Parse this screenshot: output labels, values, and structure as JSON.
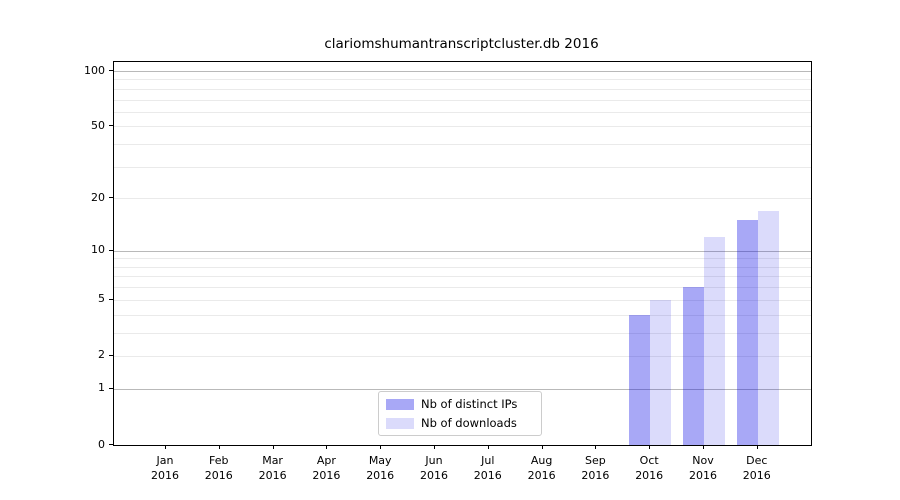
{
  "chart_data": {
    "type": "bar",
    "title": "clariomshumantranscriptcluster.db 2016",
    "categories": [
      "Jan",
      "Feb",
      "Mar",
      "Apr",
      "May",
      "Jun",
      "Jul",
      "Aug",
      "Sep",
      "Oct",
      "Nov",
      "Dec"
    ],
    "category_year": "2016",
    "series": [
      {
        "name": "Nb of distinct IPs",
        "color": "rgba(0,0,230,0.34)",
        "values": [
          null,
          null,
          null,
          null,
          null,
          null,
          null,
          null,
          null,
          4,
          6,
          15
        ]
      },
      {
        "name": "Nb of downloads",
        "color": "rgba(0,0,230,0.14)",
        "values": [
          null,
          null,
          null,
          null,
          null,
          null,
          null,
          null,
          null,
          5,
          12,
          17
        ]
      }
    ],
    "xlabel": "",
    "ylabel": "",
    "y_axis": {
      "scale": "log10(1+x)",
      "ylim": [
        0,
        112
      ],
      "tick_labels": [
        0,
        1,
        2,
        5,
        10,
        20,
        50,
        100
      ],
      "grid_major": [
        1,
        10,
        100
      ],
      "grid_minor": [
        2,
        3,
        4,
        5,
        6,
        7,
        8,
        9,
        20,
        30,
        40,
        50,
        60,
        70,
        80,
        90
      ]
    },
    "grid": true,
    "legend_position": "lower center inside axes",
    "colors": {
      "grid_major": "#b9b9b9",
      "grid_minor": "#eaeaea",
      "axis_spine": "#000000",
      "legend_border": "#cccccc"
    }
  }
}
